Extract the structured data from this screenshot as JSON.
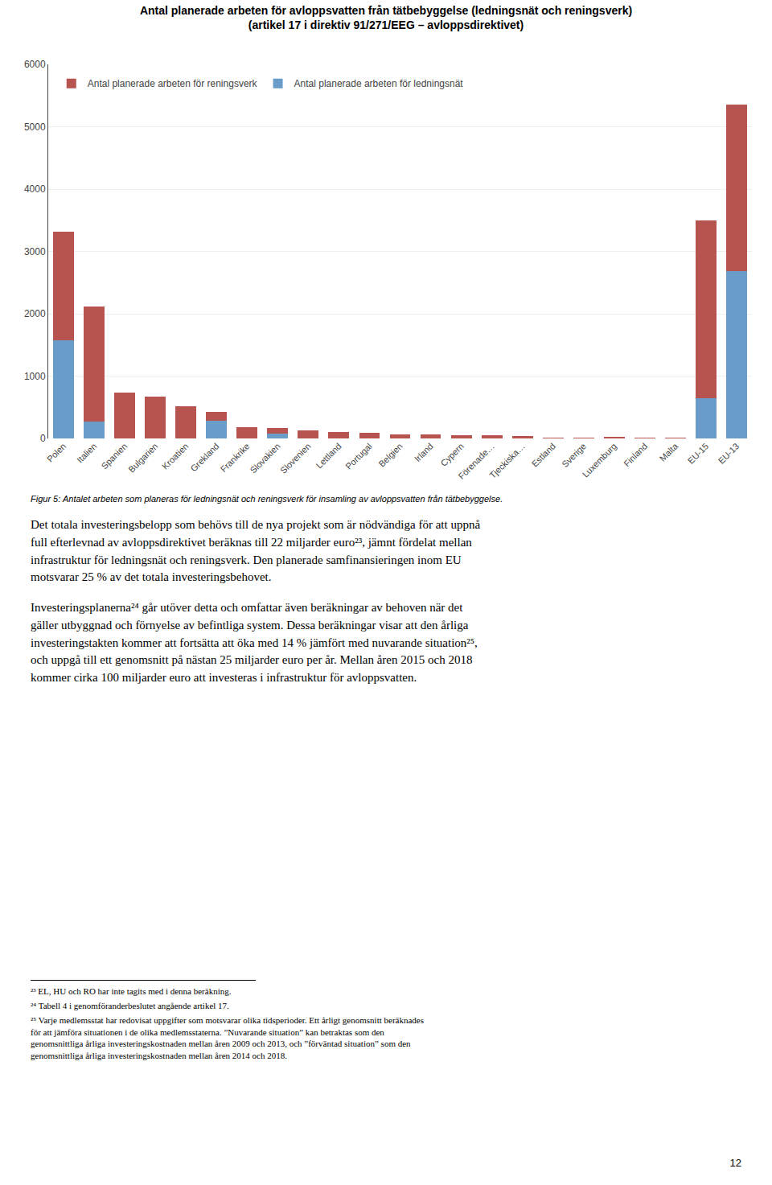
{
  "chart_data": {
    "type": "bar",
    "title": "Antal planerade arbeten för avloppsvatten från tätbebyggelse (ledningsnät och reningsverk)",
    "subtitle": "(artikel 17 i direktiv 91/271/EEG – avloppsdirektivet)",
    "categories": [
      "Polen",
      "Italien",
      "Spanien",
      "Bulgarien",
      "Kroatien",
      "Grekland",
      "Frankrike",
      "Slovakien",
      "Slovenien",
      "Lettland",
      "Portugal",
      "Belgien",
      "Irland",
      "Cypern",
      "Förenade…",
      "Tjeckiska…",
      "Estland",
      "Sverige",
      "Luxemburg",
      "Finland",
      "Malta",
      "EU-15",
      "EU-13"
    ],
    "series": [
      {
        "name": "Antal planerade arbeten för ledningsnät",
        "color": "#6a9cc9",
        "values": [
          1570,
          270,
          0,
          0,
          0,
          290,
          0,
          80,
          0,
          0,
          0,
          0,
          0,
          0,
          0,
          0,
          0,
          0,
          0,
          0,
          0,
          650,
          2680
        ]
      },
      {
        "name": "Antal planerade arbeten för reningsverk",
        "color": "#b85450",
        "values": [
          1750,
          1840,
          730,
          670,
          520,
          140,
          185,
          90,
          130,
          100,
          90,
          60,
          60,
          55,
          50,
          35,
          10,
          10,
          15,
          5,
          3,
          2850,
          2680
        ]
      }
    ],
    "stacked": true,
    "ylim": [
      0,
      6000
    ],
    "yticks": [
      0,
      1000,
      2000,
      3000,
      4000,
      5000,
      6000
    ],
    "grid": true,
    "legend": "upper left",
    "annotations": [
      "Figur 5: Antalet arbeten som planeras för ledningsnät och reningsverk för insamling av avloppsvatten från tätbebyggelse.",
      "Det totala investeringsbelopp som behövs till de nya projekt som är nödvändiga för att uppnå\nfull efterlevnad av avloppsdirektivet beräknas till 22 miljarder euro²³, jämnt fördelat mellan\ninfrastruktur för ledningsnät och reningsverk. Den planerade samfinansieringen inom EU\nmotsvarar 25 % av det totala investeringsbehovet.",
      "Investeringsplanerna²⁴ går utöver detta och omfattar även beräkningar av behoven när det\ngäller utbyggnad och förnyelse av befintliga system. Dessa beräkningar visar att den årliga\ninvesteringstakten kommer att fortsätta att öka med 14 % jämfört med nuvarande situation²⁵,\noch uppgå till ett genomsnitt på nästan 25 miljarder euro per år. Mellan åren 2015 och 2018\nkommer cirka 100 miljarder euro att investeras i infrastruktur för avloppsvatten.",
      "²³ EL, HU och RO har inte tagits med i denna beräkning.",
      "²⁴ Tabell 4 i genomföranderbeslutet angående artikel 17.",
      "²⁵ Varje medlemsstat har redovisat uppgifter som motsvarar olika tidsperioder. Ett årligt genomsnitt beräknades\nför att jämföra situationen i de olika medlemsstaterna. ”Nuvarande situation” kan betraktas som den\ngenomsnittliga årliga investeringskostnaden mellan åren 2009 och 2013, och ”förväntad situation” som den\ngenomsnittliga årliga investeringskostnaden mellan åren 2014 och 2018.",
      "12"
    ]
  }
}
